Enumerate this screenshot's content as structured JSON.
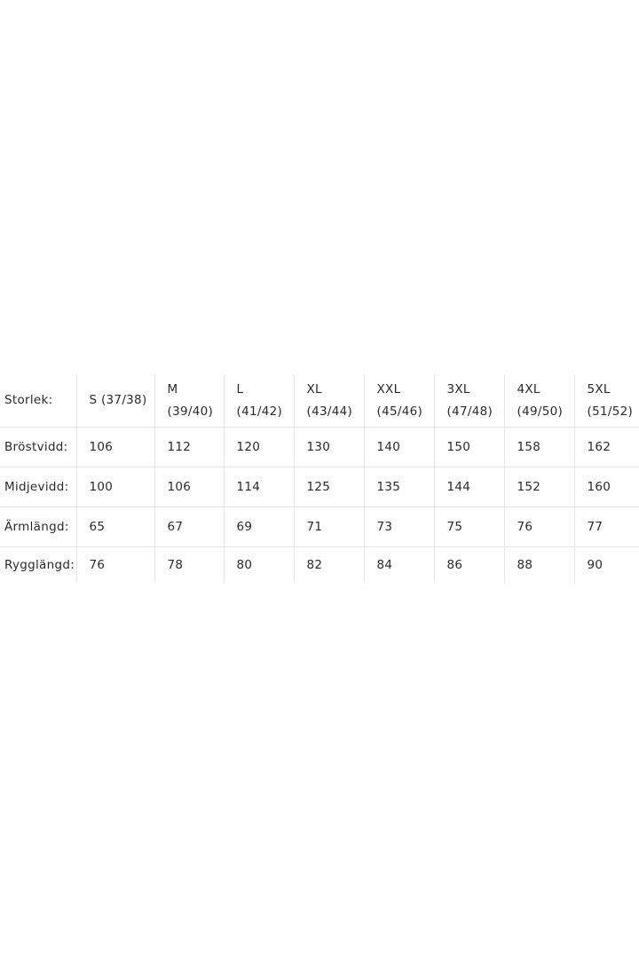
{
  "size_chart": {
    "header_label": "Storlek:",
    "sizes": [
      {
        "name": "S",
        "eu": "(37/38)"
      },
      {
        "name": "M",
        "eu": "(39/40)"
      },
      {
        "name": "L",
        "eu": "(41/42)"
      },
      {
        "name": "XL",
        "eu": "(43/44)"
      },
      {
        "name": "XXL",
        "eu": "(45/46)"
      },
      {
        "name": "3XL",
        "eu": "(47/48)"
      },
      {
        "name": "4XL",
        "eu": "(49/50)"
      },
      {
        "name": "5XL",
        "eu": "(51/52)"
      }
    ],
    "rows": [
      {
        "label": "Bröstvidd:",
        "values": [
          "106",
          "112",
          "120",
          "130",
          "140",
          "150",
          "158",
          "162"
        ]
      },
      {
        "label": "Midjevidd:",
        "values": [
          "100",
          "106",
          "114",
          "125",
          "135",
          "144",
          "152",
          "160"
        ]
      },
      {
        "label": "Ärmlängd:",
        "values": [
          "65",
          "67",
          "69",
          "71",
          "73",
          "75",
          "76",
          "77"
        ]
      },
      {
        "label": "Rygglängd:",
        "values": [
          "76",
          "78",
          "80",
          "82",
          "84",
          "86",
          "88",
          "90"
        ]
      }
    ]
  }
}
